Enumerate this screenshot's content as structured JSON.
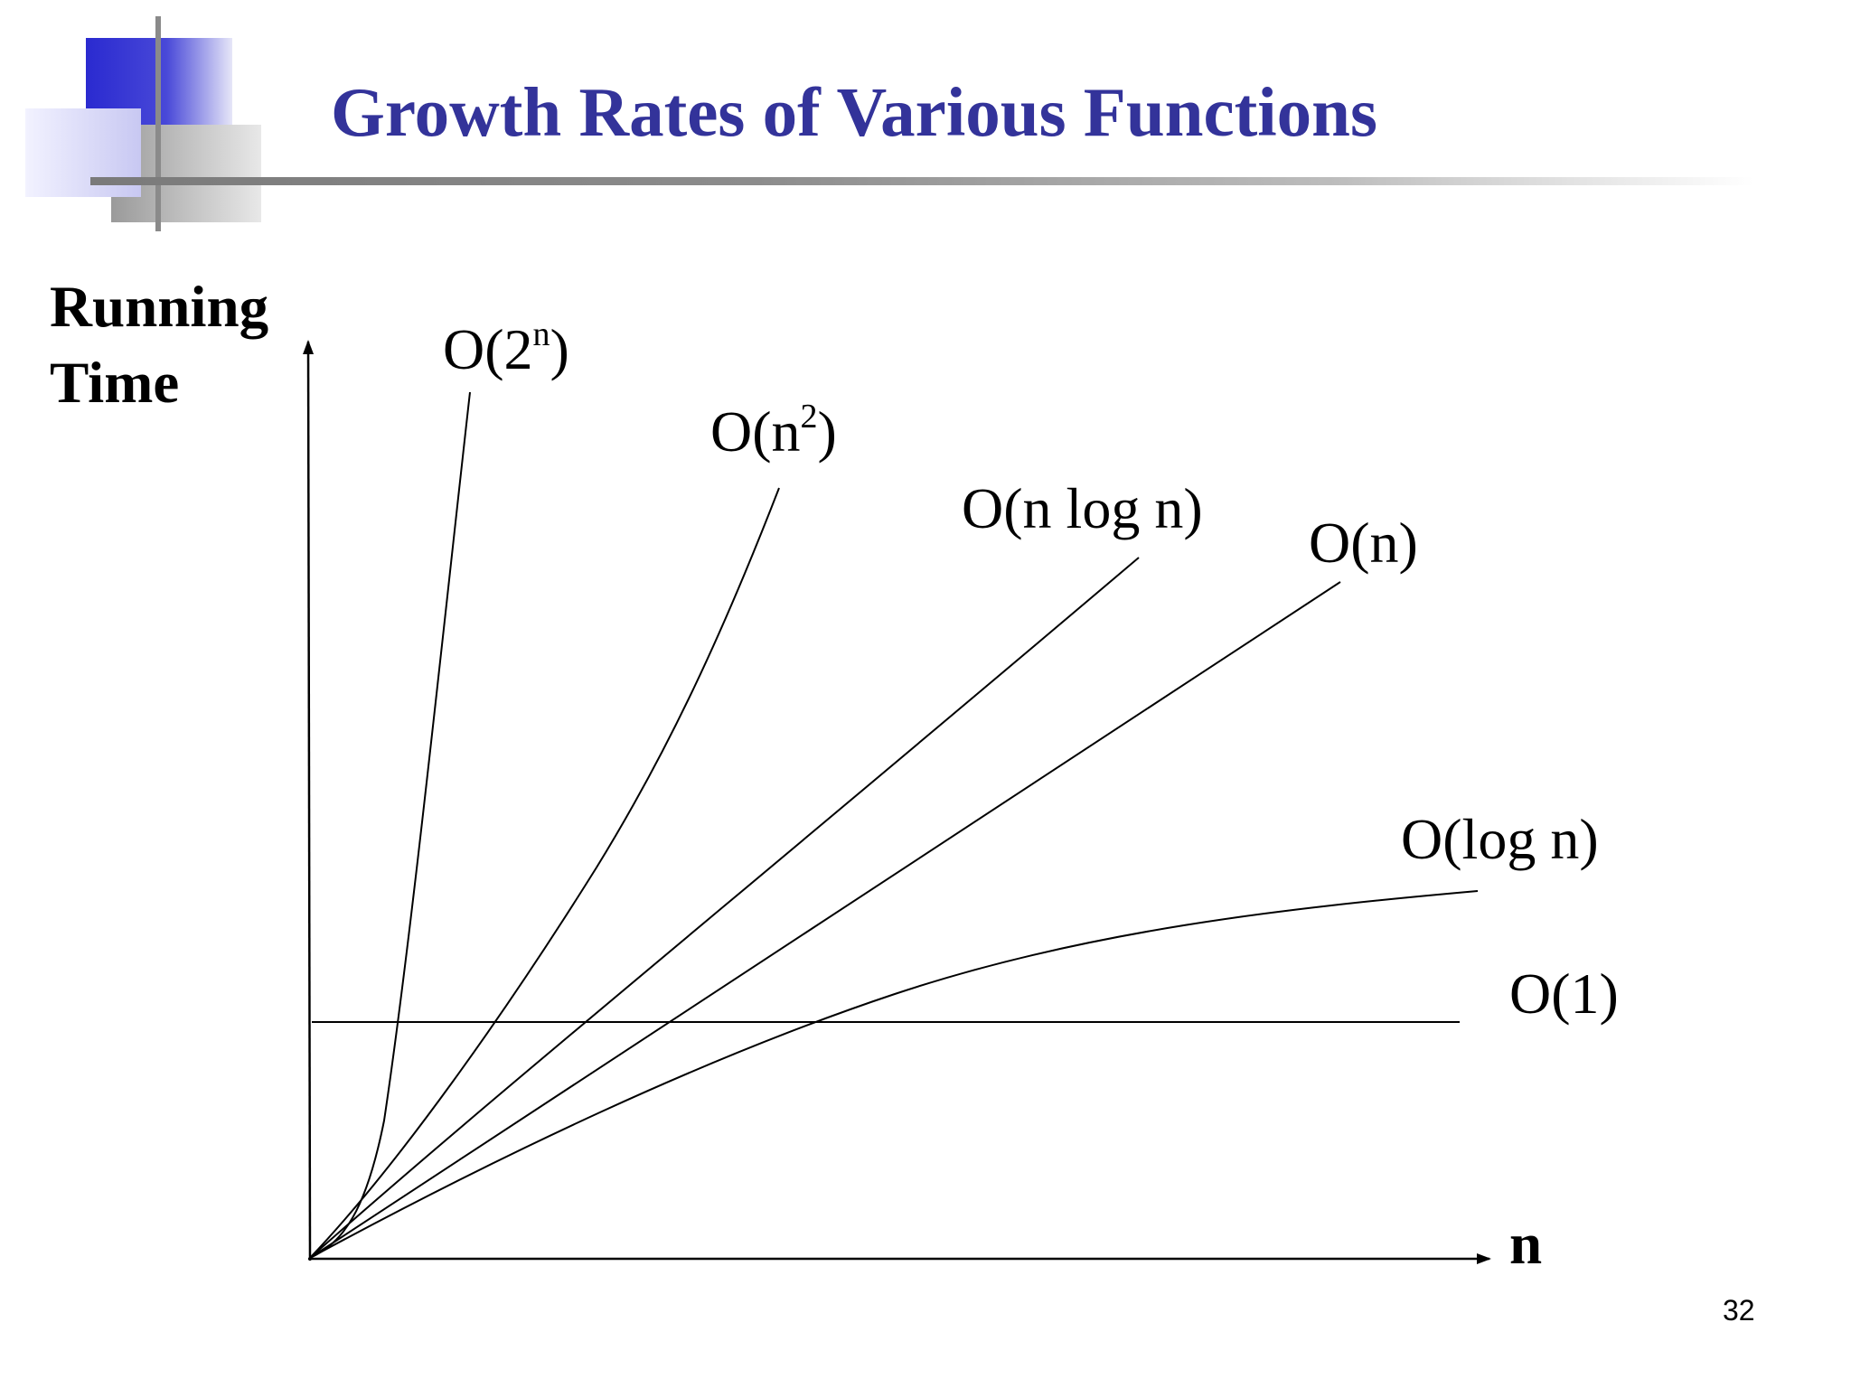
{
  "slide": {
    "title": "Growth Rates of Various Functions",
    "page_number": "32",
    "colors": {
      "title": "#33339a",
      "deco_blue": "#3333cc",
      "rule": "#8c8c8c"
    }
  },
  "chart_data": {
    "type": "line",
    "title": "Growth Rates of Various Functions",
    "xlabel": "n",
    "ylabel_lines": [
      "Running",
      "Time"
    ],
    "x_ticks": [],
    "y_ticks": [],
    "grid": false,
    "series": [
      {
        "name": "O(2^n)",
        "label_base": "O(2",
        "label_sup": "n",
        "label_tail": ")",
        "kind": "exponential"
      },
      {
        "name": "O(n^2)",
        "label_base": "O(n",
        "label_sup": "2",
        "label_tail": ")",
        "kind": "quadratic"
      },
      {
        "name": "O(n log n)",
        "label_base": "O(n log n)",
        "label_sup": "",
        "label_tail": "",
        "kind": "nlogn"
      },
      {
        "name": "O(n)",
        "label_base": "O(n)",
        "label_sup": "",
        "label_tail": "",
        "kind": "linear"
      },
      {
        "name": "O(log n)",
        "label_base": "O(log n)",
        "label_sup": "",
        "label_tail": "",
        "kind": "logarithmic"
      },
      {
        "name": "O(1)",
        "label_base": "O(1)",
        "label_sup": "",
        "label_tail": "",
        "kind": "constant"
      }
    ]
  }
}
